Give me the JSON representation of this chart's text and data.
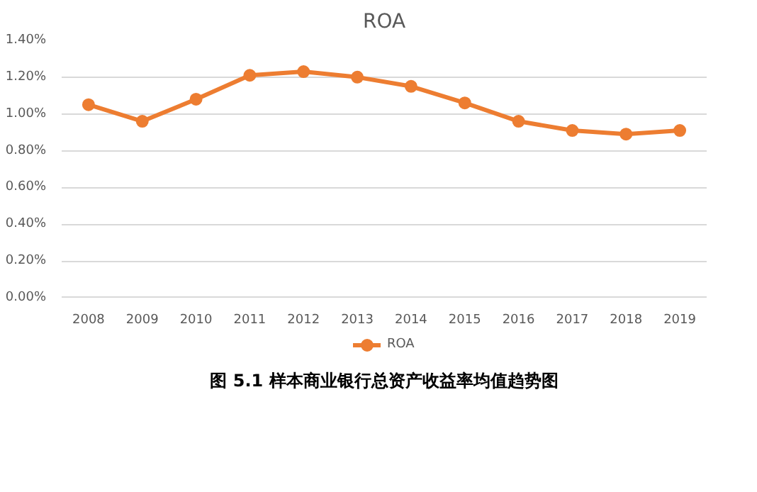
{
  "chart_data": {
    "type": "line",
    "title": "ROA",
    "categories": [
      "2008",
      "2009",
      "2010",
      "2011",
      "2012",
      "2013",
      "2014",
      "2015",
      "2016",
      "2017",
      "2018",
      "2019"
    ],
    "series": [
      {
        "name": "ROA",
        "color": "#ed7d31",
        "values": [
          1.05,
          0.96,
          1.08,
          1.21,
          1.23,
          1.2,
          1.15,
          1.06,
          0.96,
          0.91,
          0.89,
          0.91
        ]
      }
    ],
    "ylim": [
      0,
      1.4
    ],
    "yticks": [
      {
        "value": 0,
        "label": "0.00%"
      },
      {
        "value": 0.2,
        "label": "0.20%"
      },
      {
        "value": 0.4,
        "label": "0.40%"
      },
      {
        "value": 0.6,
        "label": "0.60%"
      },
      {
        "value": 0.8,
        "label": "0.80%"
      },
      {
        "value": 1.0,
        "label": "1.00%"
      },
      {
        "value": 1.2,
        "label": "1.20%"
      },
      {
        "value": 1.4,
        "label": "1.40%"
      }
    ],
    "grid": "y",
    "legend": "bottom",
    "marker": "circle",
    "line_style": "solid",
    "annotations": [
      "图 5.1 样本商业银行总资产收益率均值趋势图"
    ]
  }
}
